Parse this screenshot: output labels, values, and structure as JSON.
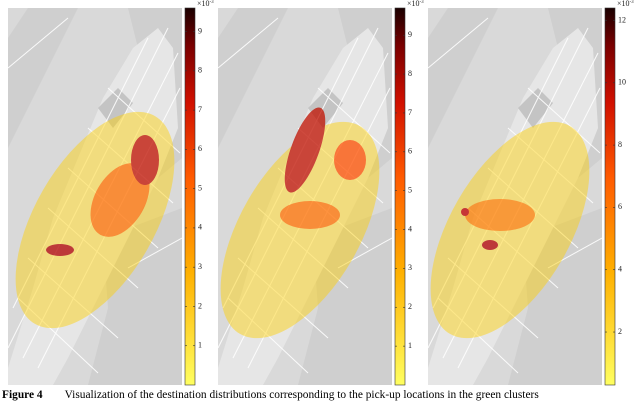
{
  "figure": {
    "panels": [
      {
        "colorbar": {
          "multiplier": "×10",
          "exponent": "-3",
          "lim": [
            0,
            9.6
          ],
          "ticks": [
            1,
            2,
            3,
            4,
            5,
            6,
            7,
            8,
            9
          ]
        }
      },
      {
        "colorbar": {
          "multiplier": "×10",
          "exponent": "-3",
          "lim": [
            0,
            9.7
          ],
          "ticks": [
            1,
            2,
            3,
            4,
            5,
            6,
            7,
            8,
            9
          ]
        }
      },
      {
        "colorbar": {
          "multiplier": "×10",
          "exponent": "-3",
          "lim": [
            0.3,
            12.4
          ],
          "ticks": [
            2,
            4,
            6,
            8,
            10,
            12
          ]
        }
      }
    ],
    "caption": {
      "label": "Figure 4",
      "text": "Visualization of the destination distributions corresponding to the pick-up locations in the green clusters"
    }
  }
}
